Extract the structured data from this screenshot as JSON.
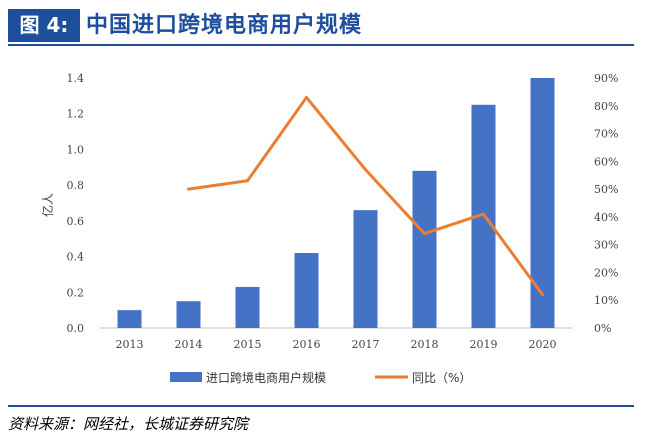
{
  "figure_label": "图 4:",
  "figure_title": "中国进口跨境电商用户规模",
  "source": "资料来源：网经社，长城证券研究院",
  "chart_data": {
    "type": "bar",
    "categories": [
      "2013",
      "2014",
      "2015",
      "2016",
      "2017",
      "2018",
      "2019",
      "2020"
    ],
    "series": [
      {
        "name": "进口跨境电商用户规模",
        "type": "bar",
        "axis": "left",
        "color": "#4472c4",
        "values": [
          0.1,
          0.15,
          0.23,
          0.42,
          0.66,
          0.88,
          1.25,
          1.4
        ]
      },
      {
        "name": "同比（%）",
        "type": "line",
        "axis": "right",
        "color": "#ed7d31",
        "values": [
          null,
          50,
          53,
          83,
          57,
          34,
          41,
          12
        ]
      }
    ],
    "ylabel": "亿人",
    "ylim": [
      0,
      1.4
    ],
    "y_ticks": [
      "0.0",
      "0.2",
      "0.4",
      "0.6",
      "0.8",
      "1.0",
      "1.2",
      "1.4"
    ],
    "y2lim": [
      0,
      90
    ],
    "y2_ticks": [
      "0%",
      "10%",
      "20%",
      "30%",
      "40%",
      "50%",
      "60%",
      "70%",
      "80%",
      "90%"
    ],
    "grid": false,
    "legend_position": "bottom"
  }
}
